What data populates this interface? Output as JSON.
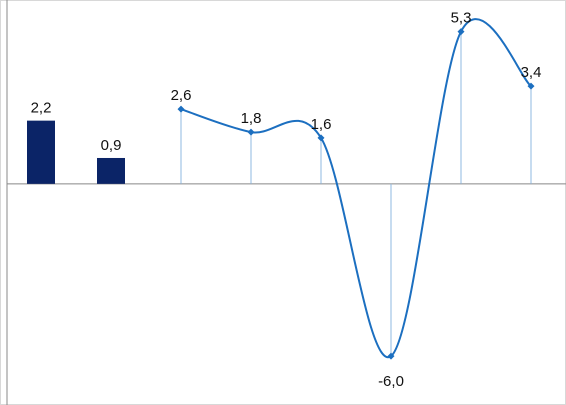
{
  "chart_data": {
    "type": "bar-line",
    "categories": [
      null,
      null,
      null,
      null,
      null,
      null,
      null,
      null
    ],
    "series": [
      {
        "type": "bar",
        "color": "#0b2467",
        "values": [
          2.2,
          0.9,
          null,
          null,
          null,
          null,
          null,
          null
        ],
        "value_labels": [
          "2,2",
          "0,9",
          null,
          null,
          null,
          null,
          null,
          null
        ]
      },
      {
        "type": "line",
        "color": "#1c6fc0",
        "values": [
          null,
          null,
          2.6,
          1.8,
          1.6,
          -6.0,
          5.3,
          3.4
        ],
        "value_labels": [
          null,
          null,
          "2,6",
          "1,8",
          "1,6",
          "-6,0",
          "5,3",
          "3,4"
        ]
      }
    ],
    "ylim": [
      -7.7,
      6.4
    ]
  }
}
